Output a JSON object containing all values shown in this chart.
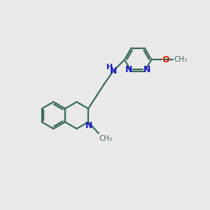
{
  "background_color": "#e9e9e9",
  "bond_color": "#3a6b5a",
  "nitrogen_color": "#1a1acc",
  "oxygen_color": "#cc2200",
  "line_width": 1.6,
  "figsize": [
    3.0,
    3.0
  ],
  "dpi": 100,
  "xlim": [
    0,
    10
  ],
  "ylim": [
    0,
    10
  ]
}
